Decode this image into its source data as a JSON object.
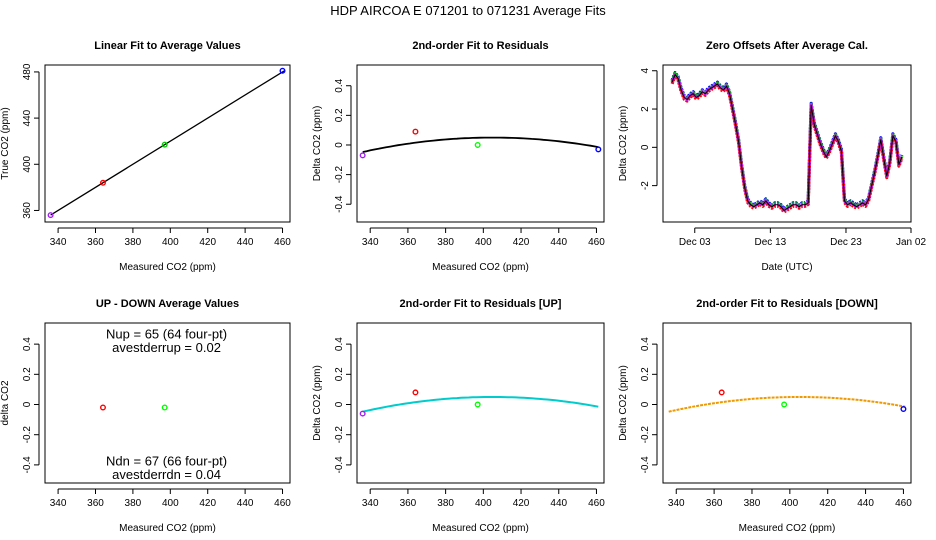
{
  "figure_title": "HDP    AIRCOA E    071201 to 071231    Average Fits",
  "chart_data": [
    {
      "id": "p1",
      "type": "scatter",
      "title": "Linear Fit to Average Values",
      "xlabel": "Measured CO2 (ppm)",
      "ylabel": "True CO2 (ppm)",
      "xlim": [
        333,
        464
      ],
      "ylim": [
        350,
        486
      ],
      "xticks": [
        340,
        360,
        380,
        400,
        420,
        440,
        460
      ],
      "yticks": [
        360,
        400,
        440,
        480
      ],
      "fit_line": {
        "x": [
          336,
          461
        ],
        "y": [
          356,
          481
        ],
        "color": "#000000"
      },
      "points": [
        {
          "x": 336,
          "y": 356,
          "color": "#a020f0"
        },
        {
          "x": 364,
          "y": 384,
          "color": "#ff0000"
        },
        {
          "x": 397,
          "y": 417,
          "color": "#00cc00"
        },
        {
          "x": 460,
          "y": 481,
          "color": "#0000ff"
        }
      ]
    },
    {
      "id": "p2",
      "type": "scatter",
      "title": "2nd-order Fit to Residuals",
      "xlabel": "Measured CO2 (ppm)",
      "ylabel": "Delta CO2 (ppm)",
      "xlim": [
        333,
        464
      ],
      "ylim": [
        -0.52,
        0.54
      ],
      "xticks": [
        340,
        360,
        380,
        400,
        420,
        440,
        460
      ],
      "yticks": [
        -0.4,
        -0.2,
        0.0,
        0.2,
        0.4
      ],
      "curve": {
        "x0": 336,
        "x1": 461,
        "a": -2.05e-05,
        "vertex": 405,
        "peak": 0.05,
        "color": "#000000",
        "width": 1.8
      },
      "points": [
        {
          "x": 336,
          "y": -0.07,
          "color": "#a020f0"
        },
        {
          "x": 364,
          "y": 0.09,
          "color": "#ff0000"
        },
        {
          "x": 397,
          "y": 0.0,
          "color": "#00ff00"
        },
        {
          "x": 461,
          "y": -0.03,
          "color": "#0000ff"
        }
      ]
    },
    {
      "id": "p3",
      "type": "line",
      "title": "Zero Offsets After Average Cal.",
      "xlabel": "Date (UTC)",
      "ylabel": "Delta CO2 (ppm)",
      "xlim": [
        -1.2,
        31.6
      ],
      "ylim": [
        -3.9,
        4.3
      ],
      "xticks": [
        3,
        13,
        23,
        33
      ],
      "xtick_labels": [
        "Dec 03",
        "Dec 13",
        "Dec 23",
        "Jan 02"
      ],
      "yticks": [
        -2,
        0,
        2,
        4
      ],
      "series_x": [
        0.0,
        0.4,
        0.8,
        1.2,
        1.6,
        2.0,
        2.4,
        2.8,
        3.2,
        3.6,
        4.0,
        4.4,
        4.8,
        5.2,
        5.6,
        6.0,
        6.4,
        6.8,
        7.2,
        7.6,
        8.0,
        8.4,
        8.8,
        9.2,
        9.6,
        10.0,
        10.4,
        10.8,
        11.2,
        11.6,
        12.0,
        12.4,
        12.8,
        13.2,
        13.6,
        14.0,
        14.4,
        14.8,
        15.2,
        15.6,
        16.0,
        16.4,
        16.8,
        17.2,
        17.6,
        18.0,
        18.4,
        18.8,
        19.2,
        19.6,
        20.0,
        20.4,
        20.8,
        21.2,
        21.6,
        22.0,
        22.4,
        22.8,
        23.2,
        23.6,
        24.0,
        24.4,
        24.8,
        25.2,
        25.6,
        26.0,
        26.4,
        26.8,
        27.2,
        27.6,
        28.0,
        28.4,
        28.8,
        29.2,
        29.6,
        30.0,
        30.4
      ],
      "series_y": [
        3.4,
        3.8,
        3.6,
        3.0,
        2.6,
        2.5,
        2.7,
        2.8,
        2.6,
        2.7,
        2.9,
        2.8,
        3.0,
        3.1,
        3.2,
        3.3,
        3.1,
        3.0,
        3.2,
        2.8,
        2.0,
        1.2,
        0.3,
        -1.0,
        -2.1,
        -2.8,
        -3.0,
        -3.1,
        -3.0,
        -2.9,
        -3.0,
        -2.8,
        -3.0,
        -3.1,
        -3.0,
        -3.0,
        -3.1,
        -3.3,
        -3.2,
        -3.1,
        -3.0,
        -3.0,
        -3.1,
        -3.0,
        -3.0,
        -2.9,
        2.2,
        1.2,
        0.7,
        0.2,
        -0.2,
        -0.5,
        -0.2,
        0.2,
        0.6,
        0.3,
        -0.2,
        -2.8,
        -3.0,
        -2.9,
        -3.0,
        -3.1,
        -3.0,
        -2.9,
        -3.0,
        -2.7,
        -2.0,
        -1.3,
        -0.5,
        0.4,
        -0.6,
        -1.5,
        -0.8,
        0.6,
        0.3,
        -0.9,
        -0.5
      ],
      "series": [
        {
          "name": "blue",
          "color": "#0000ff",
          "offset": 0.1,
          "width": 3.2
        },
        {
          "name": "green",
          "color": "#00cc00",
          "offset": 0.05,
          "width": 3.2
        },
        {
          "name": "red",
          "color": "#ff0000",
          "offset": -0.08,
          "width": 3.2
        },
        {
          "name": "purple",
          "color": "#c020e0",
          "offset": 0.0,
          "width": 3.2
        },
        {
          "name": "avg",
          "color": "#000000",
          "offset": 0.0,
          "width": 1
        }
      ]
    },
    {
      "id": "p4",
      "type": "scatter",
      "title": "UP - DOWN Average Values",
      "xlabel": "Measured CO2 (ppm)",
      "ylabel": "delta CO2",
      "xlim": [
        333,
        464
      ],
      "ylim": [
        -0.52,
        0.54
      ],
      "xticks": [
        340,
        360,
        380,
        400,
        420,
        440,
        460
      ],
      "yticks": [
        -0.4,
        -0.2,
        0.0,
        0.2,
        0.4
      ],
      "points": [
        {
          "x": 364,
          "y": -0.02,
          "color": "#ff0000"
        },
        {
          "x": 397,
          "y": -0.02,
          "color": "#00ff00"
        }
      ],
      "annotations": [
        {
          "text": "Nup = 65 (64 four-pt)",
          "x": 398,
          "y": 0.47
        },
        {
          "text": "avestderrup =  0.02",
          "x": 398,
          "y": 0.38
        },
        {
          "text": "Ndn = 67 (66 four-pt)",
          "x": 398,
          "y": -0.37
        },
        {
          "text": "avestderrdn =  0.04",
          "x": 398,
          "y": -0.46
        }
      ]
    },
    {
      "id": "p5",
      "type": "scatter",
      "title": "2nd-order Fit to Residuals [UP]",
      "xlabel": "Measured CO2 (ppm)",
      "ylabel": "Delta CO2 (ppm)",
      "xlim": [
        333,
        464
      ],
      "ylim": [
        -0.52,
        0.54
      ],
      "xticks": [
        340,
        360,
        380,
        400,
        420,
        440,
        460
      ],
      "yticks": [
        -0.4,
        -0.2,
        0.0,
        0.2,
        0.4
      ],
      "curve": {
        "x0": 336,
        "x1": 461,
        "a": -2.05e-05,
        "vertex": 405,
        "peak": 0.05,
        "color": "#00cccc",
        "width": 2
      },
      "points": [
        {
          "x": 336,
          "y": -0.06,
          "color": "#a020f0"
        },
        {
          "x": 364,
          "y": 0.08,
          "color": "#ff0000"
        },
        {
          "x": 397,
          "y": 0.0,
          "color": "#00ff00"
        }
      ]
    },
    {
      "id": "p6",
      "type": "scatter",
      "title": "2nd-order Fit to Residuals [DOWN]",
      "xlabel": "Measured CO2 (ppm)",
      "ylabel": "Delta CO2 (ppm)",
      "xlim": [
        333,
        464
      ],
      "ylim": [
        -0.52,
        0.54
      ],
      "xticks": [
        340,
        360,
        380,
        400,
        420,
        440,
        460
      ],
      "yticks": [
        -0.4,
        -0.2,
        0.0,
        0.2,
        0.4
      ],
      "curve": {
        "x0": 336,
        "x1": 461,
        "a": -2.05e-05,
        "vertex": 405,
        "peak": 0.05,
        "color": "#ee9900",
        "width": 2,
        "dashed": true
      },
      "points": [
        {
          "x": 364,
          "y": 0.08,
          "color": "#ff0000"
        },
        {
          "x": 397,
          "y": 0.0,
          "color": "#00ff00"
        },
        {
          "x": 460,
          "y": -0.03,
          "color": "#0000ff"
        }
      ]
    }
  ]
}
